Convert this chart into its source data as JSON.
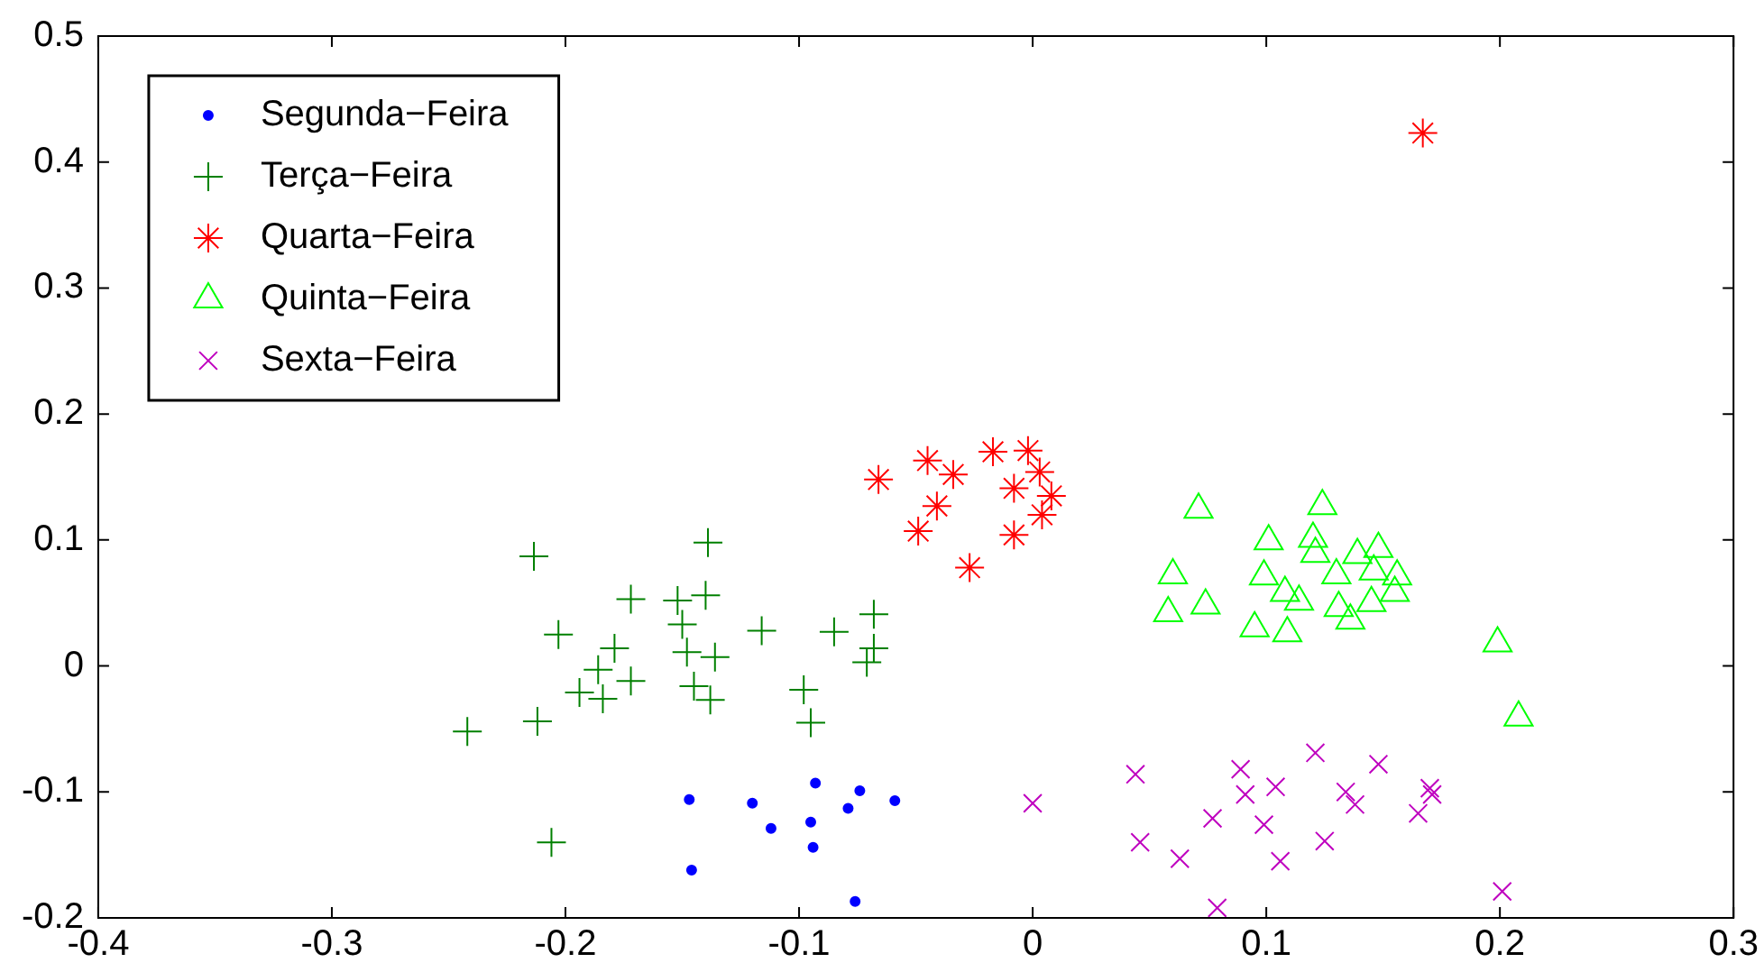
{
  "chart_data": {
    "type": "scatter",
    "legend": "top left",
    "grid": false,
    "xlim": [
      -0.4,
      0.3
    ],
    "xticks": [
      -0.4,
      -0.3,
      -0.2,
      -0.1,
      0,
      0.1,
      0.2,
      0.3
    ],
    "ylim": [
      -0.2,
      0.5
    ],
    "yticks": [
      -0.2,
      -0.1,
      0,
      0.1,
      0.2,
      0.3,
      0.4,
      0.5
    ],
    "series": [
      {
        "name": "Segunda−Feira",
        "color": "#0000ff",
        "marker": "circle",
        "x": [
          -0.147,
          -0.12,
          -0.093,
          -0.074,
          -0.059,
          -0.112,
          -0.095,
          -0.079,
          -0.094,
          -0.146,
          -0.076
        ],
        "values": [
          -0.106,
          -0.109,
          -0.093,
          -0.099,
          -0.107,
          -0.129,
          -0.124,
          -0.113,
          -0.144,
          -0.162,
          -0.187
        ]
      },
      {
        "name": "Terça−Feira",
        "color": "#008000",
        "marker": "plus",
        "x": [
          -0.2135,
          -0.139,
          -0.172,
          -0.152,
          -0.14,
          -0.15,
          -0.203,
          -0.179,
          -0.148,
          -0.136,
          -0.116,
          -0.085,
          -0.068,
          -0.068,
          -0.071,
          -0.186,
          -0.172,
          -0.194,
          -0.184,
          -0.145,
          -0.138,
          -0.098,
          -0.095,
          -0.212,
          -0.242,
          -0.206
        ],
        "values": [
          0.087,
          0.098,
          0.053,
          0.052,
          0.056,
          0.033,
          0.025,
          0.014,
          0.011,
          0.007,
          0.028,
          0.027,
          0.041,
          0.014,
          0.003,
          -0.003,
          -0.012,
          -0.021,
          -0.026,
          -0.016,
          -0.027,
          -0.019,
          -0.045,
          -0.044,
          -0.052,
          -0.14
        ]
      },
      {
        "name": "Quarta−Feira",
        "color": "#ff0000",
        "x": [
          -0.066,
          -0.045,
          -0.034,
          -0.041,
          -0.049,
          -0.027,
          -0.017,
          -0.002,
          0.003,
          -0.008,
          0.008,
          0.004,
          -0.008,
          0.167
        ],
        "values": [
          0.148,
          0.163,
          0.152,
          0.127,
          0.107,
          0.078,
          0.17,
          0.171,
          0.154,
          0.141,
          0.135,
          0.12,
          0.104,
          0.423
        ]
      },
      {
        "name": "Quinta−Feira",
        "color": "#00ff00",
        "marker": "triangle",
        "x": [
          0.071,
          0.124,
          0.101,
          0.12,
          0.121,
          0.06,
          0.099,
          0.108,
          0.114,
          0.074,
          0.058,
          0.095,
          0.109,
          0.13,
          0.139,
          0.148,
          0.146,
          0.156,
          0.155,
          0.131,
          0.145,
          0.136,
          0.199,
          0.208
        ],
        "values": [
          0.124,
          0.127,
          0.099,
          0.101,
          0.089,
          0.072,
          0.071,
          0.058,
          0.051,
          0.048,
          0.042,
          0.03,
          0.026,
          0.072,
          0.088,
          0.093,
          0.075,
          0.071,
          0.058,
          0.046,
          0.05,
          0.036,
          0.018,
          -0.041
        ]
      },
      {
        "name": "Sexta−Feira",
        "color": "#bf00bf",
        "marker": "cross",
        "x": [
          0.0,
          0.044,
          0.046,
          0.063,
          0.077,
          0.079,
          0.089,
          0.091,
          0.104,
          0.099,
          0.106,
          0.121,
          0.134,
          0.138,
          0.125,
          0.148,
          0.17,
          0.171,
          0.165,
          0.201
        ],
        "values": [
          -0.109,
          -0.086,
          -0.14,
          -0.153,
          -0.121,
          -0.192,
          -0.082,
          -0.102,
          -0.096,
          -0.126,
          -0.155,
          -0.069,
          -0.1,
          -0.11,
          -0.139,
          -0.078,
          -0.097,
          -0.102,
          -0.117,
          -0.179
        ]
      }
    ]
  }
}
